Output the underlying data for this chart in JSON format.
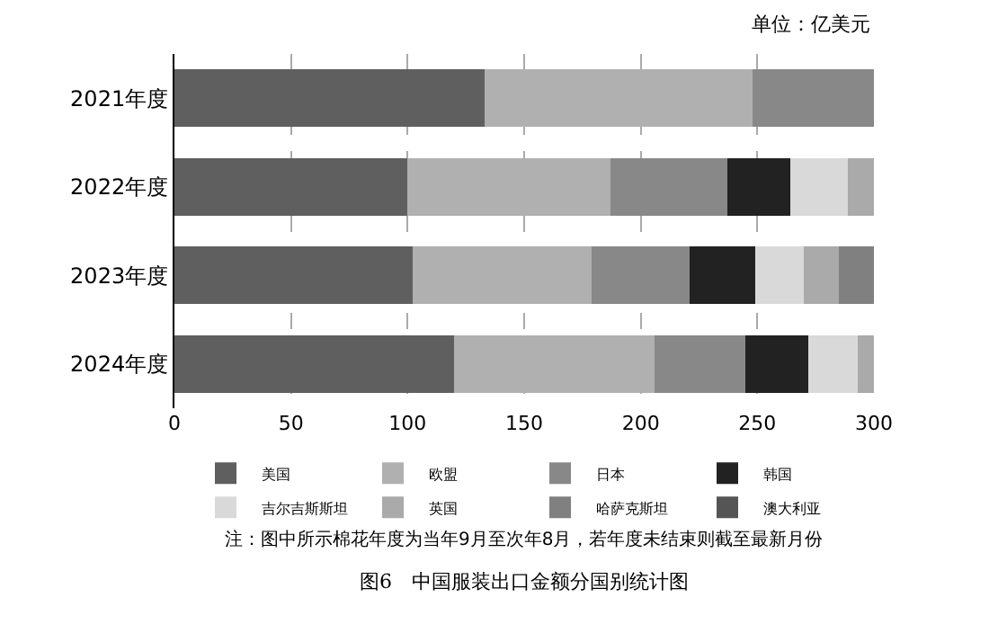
{
  "chart_data": {
    "type": "bar",
    "orientation": "horizontal",
    "stacked": true,
    "categories": [
      "2021年度",
      "2022年度",
      "2023年度",
      "2024年度"
    ],
    "series": [
      {
        "name": "美国",
        "color": "#5f5f5f",
        "values": [
          133,
          100,
          102,
          120
        ]
      },
      {
        "name": "欧盟",
        "color": "#b0b0b0",
        "values": [
          115,
          87,
          77,
          86
        ]
      },
      {
        "name": "日本",
        "color": "#888888",
        "values": [
          52,
          50,
          42,
          39
        ]
      },
      {
        "name": "韩国",
        "color": "#222222",
        "values": [
          null,
          27,
          28,
          27
        ]
      },
      {
        "name": "吉尔吉斯斯坦",
        "color": "#d9d9d9",
        "values": [
          null,
          25,
          21,
          21
        ]
      },
      {
        "name": "英国",
        "color": "#aaaaaa",
        "values": [
          null,
          11,
          15,
          7
        ]
      },
      {
        "name": "哈萨克斯坦",
        "color": "#808080",
        "values": [
          null,
          null,
          15,
          null
        ]
      },
      {
        "name": "澳大利亚",
        "color": "#555555",
        "values": [
          null,
          null,
          null,
          null
        ]
      }
    ],
    "xlim": [
      0,
      300
    ],
    "xticks": [
      0,
      50,
      100,
      150,
      200,
      250,
      300
    ],
    "grid": "x",
    "legend": "bottom",
    "annotations": [
      "单位：亿美元",
      "注：图中所示棉花年度为当年9月至次年8月，若年度未结束则截至最新月份",
      "图6　中国服装出口金额分国别统计图"
    ]
  }
}
